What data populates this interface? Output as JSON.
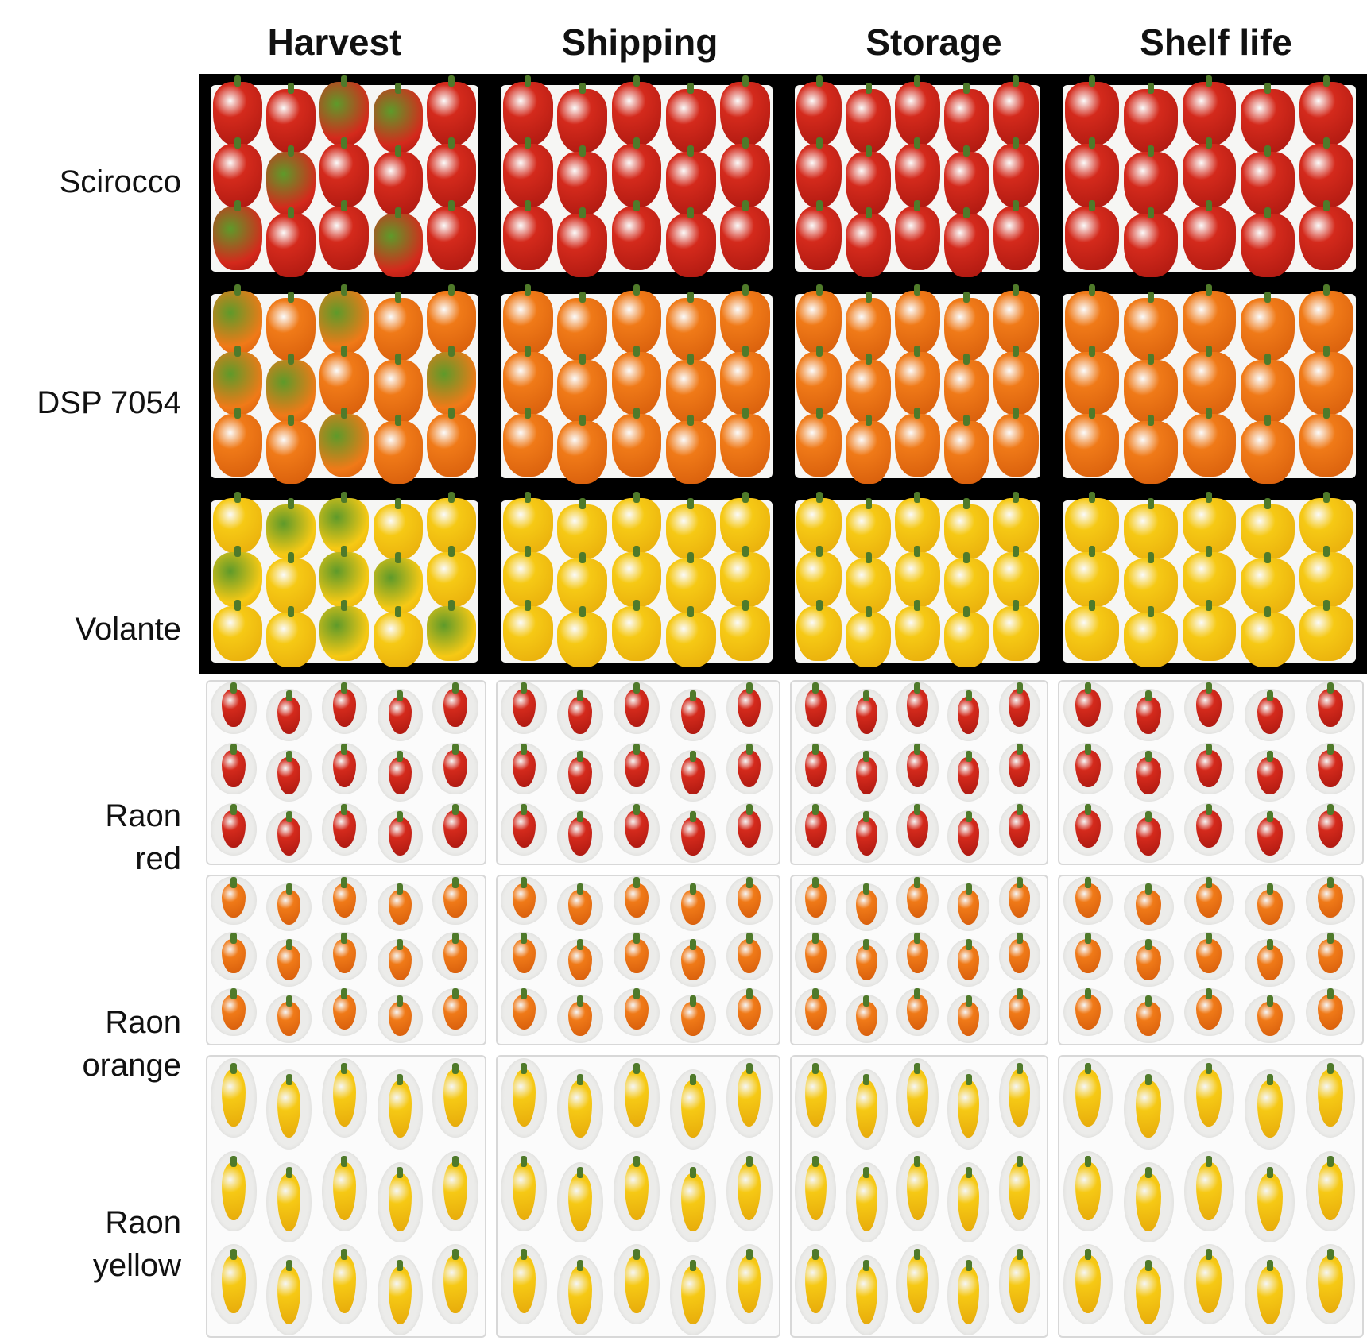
{
  "columns": [
    "Harvest",
    "Shipping",
    "Storage",
    "Shelf life"
  ],
  "rows": [
    {
      "label_lines": [
        "Scirocco"
      ],
      "type": "large",
      "palette": "red"
    },
    {
      "label_lines": [
        "DSP 7054"
      ],
      "type": "large",
      "palette": "orange"
    },
    {
      "label_lines": [
        "Volante"
      ],
      "type": "large",
      "palette": "yellow"
    },
    {
      "label_lines": [
        "Raon",
        "red"
      ],
      "type": "small",
      "palette": "red"
    },
    {
      "label_lines": [
        "Raon",
        "orange"
      ],
      "type": "small",
      "palette": "orange"
    },
    {
      "label_lines": [
        "Raon",
        "yellow"
      ],
      "type": "small",
      "palette": "yellow"
    }
  ],
  "colors": {
    "red": "#d42a1c",
    "red_dark": "#a8160f",
    "orange": "#f07a18",
    "orange_dark": "#d45a0a",
    "yellow": "#f6c915",
    "yellow_dark": "#e6a90a",
    "green": "#5e9a2a",
    "background": "#000000",
    "tray": "#f6f6f4"
  }
}
